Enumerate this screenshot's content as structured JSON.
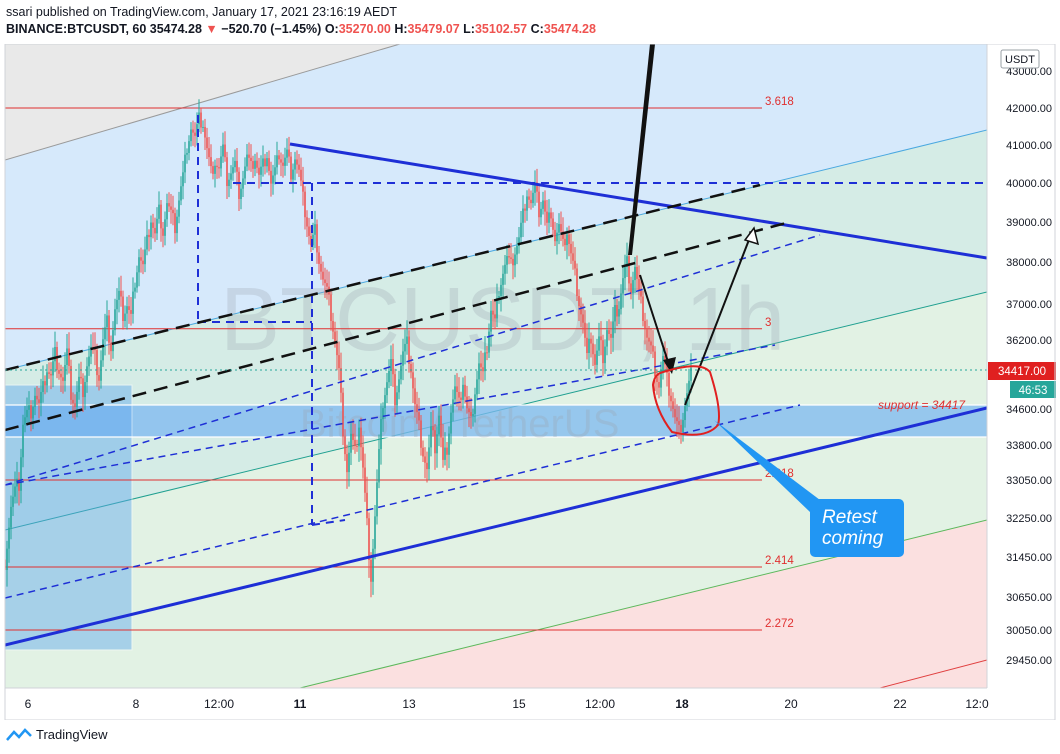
{
  "header": {
    "published": "ssari published on TradingView.com, January 17, 2021 23:16:19 AEDT",
    "symbol": "BINANCE:BTCUSDT, 60",
    "last": "35474.28",
    "change": "−520.70 (−1.45%)",
    "o_label": "O:",
    "o_value": "35270.00",
    "h_label": "H:",
    "h_value": "35479.07",
    "l_label": "L:",
    "l_value": "35102.57",
    "c_label": "C:",
    "c_value": "35474.28"
  },
  "footer": {
    "brand": "TradingView"
  },
  "colors": {
    "up": "#26a69a",
    "down": "#ef5350",
    "trend": "#1e2fd6",
    "fib": "#e03030",
    "channel_blue": "#cfe6fb",
    "channel_green": "#dff1e2",
    "channel_red": "#fbdede",
    "channel_gray": "#e6e6e6"
  },
  "chart_data": {
    "type": "candlestick",
    "price_unit": "USDT",
    "watermark_title": "BTCUSDT, 1h",
    "watermark_subtitle": "Bitcoin / TetherUS",
    "y_ticks": [
      "43000.00",
      "42000.00",
      "41000.00",
      "40000.00",
      "39000.00",
      "38000.00",
      "37000.00",
      "36200.00",
      "35450.00",
      "34600.00",
      "33800.00",
      "33050.00",
      "32250.00",
      "31450.00",
      "30650.00",
      "30050.00",
      "29450.00"
    ],
    "x_ticks": [
      {
        "label": "6",
        "bold": false
      },
      {
        "label": "8",
        "bold": false
      },
      {
        "label": "12:00",
        "bold": false
      },
      {
        "label": "11",
        "bold": true
      },
      {
        "label": "13",
        "bold": false
      },
      {
        "label": "15",
        "bold": false
      },
      {
        "label": "12:00",
        "bold": false
      },
      {
        "label": "18",
        "bold": true
      },
      {
        "label": "20",
        "bold": false
      },
      {
        "label": "22",
        "bold": false
      },
      {
        "label": "12:0",
        "bold": false
      }
    ],
    "price_label": "34417.00",
    "countdown": "46:53",
    "support_label": "support = 34417",
    "fib_levels": [
      {
        "label": "3.618",
        "price": 42000
      },
      {
        "label": "3",
        "price": 36450
      },
      {
        "label": "2.618",
        "price": 33050
      },
      {
        "label": "2.414",
        "price": 31250
      },
      {
        "label": "2.272",
        "price": 30050
      }
    ],
    "horizontal_levels": [
      40000
    ],
    "annotation": "Retest\ncoming",
    "candles_close_path": [
      [
        0,
        31400
      ],
      [
        6,
        32500
      ],
      [
        10,
        32800
      ],
      [
        14,
        33000
      ],
      [
        18,
        34300
      ],
      [
        22,
        34500
      ],
      [
        26,
        34600
      ],
      [
        30,
        35000
      ],
      [
        34,
        34700
      ],
      [
        38,
        35100
      ],
      [
        42,
        35600
      ],
      [
        46,
        35400
      ],
      [
        50,
        35900
      ],
      [
        54,
        35600
      ],
      [
        58,
        35300
      ],
      [
        62,
        35900
      ],
      [
        66,
        35000
      ],
      [
        70,
        34700
      ],
      [
        74,
        35300
      ],
      [
        78,
        35100
      ],
      [
        82,
        35700
      ],
      [
        86,
        36000
      ],
      [
        90,
        35800
      ],
      [
        94,
        35400
      ],
      [
        98,
        36200
      ],
      [
        102,
        36600
      ],
      [
        106,
        36100
      ],
      [
        110,
        36900
      ],
      [
        114,
        37200
      ],
      [
        118,
        36800
      ],
      [
        122,
        37000
      ],
      [
        126,
        36700
      ],
      [
        130,
        37600
      ],
      [
        134,
        38200
      ],
      [
        138,
        37900
      ],
      [
        142,
        38500
      ],
      [
        146,
        39100
      ],
      [
        150,
        38700
      ],
      [
        154,
        39300
      ],
      [
        158,
        38800
      ],
      [
        162,
        39500
      ],
      [
        166,
        39200
      ],
      [
        170,
        38900
      ],
      [
        174,
        39600
      ],
      [
        178,
        40200
      ],
      [
        182,
        41000
      ],
      [
        186,
        41500
      ],
      [
        190,
        41200
      ],
      [
        194,
        41700
      ],
      [
        198,
        41600
      ],
      [
        202,
        40900
      ],
      [
        206,
        40300
      ],
      [
        210,
        40600
      ],
      [
        214,
        40400
      ],
      [
        218,
        40900
      ],
      [
        222,
        40100
      ],
      [
        226,
        40300
      ],
      [
        230,
        40500
      ],
      [
        234,
        39800
      ],
      [
        238,
        40200
      ],
      [
        242,
        40700
      ],
      [
        246,
        40400
      ],
      [
        250,
        40700
      ],
      [
        254,
        40200
      ],
      [
        258,
        40500
      ],
      [
        262,
        40800
      ],
      [
        266,
        40000
      ],
      [
        270,
        40300
      ],
      [
        274,
        40800
      ],
      [
        278,
        40500
      ],
      [
        282,
        40800
      ],
      [
        286,
        40300
      ],
      [
        290,
        40700
      ],
      [
        294,
        40300
      ],
      [
        298,
        39600
      ],
      [
        302,
        39000
      ],
      [
        306,
        38400
      ],
      [
        310,
        38800
      ],
      [
        314,
        38100
      ],
      [
        318,
        37600
      ],
      [
        322,
        37300
      ],
      [
        326,
        36800
      ],
      [
        330,
        36200
      ],
      [
        334,
        35500
      ],
      [
        338,
        34200
      ],
      [
        342,
        33300
      ],
      [
        346,
        34000
      ],
      [
        350,
        33600
      ],
      [
        354,
        34300
      ],
      [
        358,
        33300
      ],
      [
        362,
        32100
      ],
      [
        366,
        31100
      ],
      [
        370,
        32300
      ],
      [
        374,
        33600
      ],
      [
        378,
        34800
      ],
      [
        382,
        35300
      ],
      [
        386,
        35700
      ],
      [
        390,
        34900
      ],
      [
        394,
        35400
      ],
      [
        398,
        35900
      ],
      [
        402,
        36100
      ],
      [
        406,
        35600
      ],
      [
        410,
        34700
      ],
      [
        414,
        34200
      ],
      [
        418,
        33700
      ],
      [
        422,
        33300
      ],
      [
        426,
        34100
      ],
      [
        430,
        33800
      ],
      [
        434,
        34500
      ],
      [
        438,
        33400
      ],
      [
        442,
        33800
      ],
      [
        446,
        34600
      ],
      [
        450,
        35100
      ],
      [
        454,
        34700
      ],
      [
        458,
        35300
      ],
      [
        462,
        34600
      ],
      [
        466,
        34300
      ],
      [
        470,
        35100
      ],
      [
        474,
        35700
      ],
      [
        478,
        35400
      ],
      [
        482,
        36100
      ],
      [
        486,
        36900
      ],
      [
        490,
        36600
      ],
      [
        494,
        37400
      ],
      [
        498,
        37800
      ],
      [
        502,
        38100
      ],
      [
        506,
        37900
      ],
      [
        510,
        38300
      ],
      [
        514,
        38600
      ],
      [
        518,
        39200
      ],
      [
        522,
        39800
      ],
      [
        526,
        39500
      ],
      [
        530,
        39900
      ],
      [
        534,
        39300
      ],
      [
        538,
        39600
      ],
      [
        542,
        38900
      ],
      [
        546,
        39300
      ],
      [
        550,
        38600
      ],
      [
        554,
        38900
      ],
      [
        558,
        38400
      ],
      [
        562,
        38800
      ],
      [
        566,
        38200
      ],
      [
        570,
        37700
      ],
      [
        574,
        37100
      ],
      [
        578,
        36600
      ],
      [
        582,
        35800
      ],
      [
        586,
        36300
      ],
      [
        590,
        35700
      ],
      [
        594,
        36200
      ],
      [
        598,
        35900
      ],
      [
        602,
        36500
      ],
      [
        606,
        36200
      ],
      [
        610,
        36800
      ],
      [
        614,
        37000
      ],
      [
        618,
        37600
      ],
      [
        622,
        38000
      ],
      [
        626,
        37400
      ],
      [
        630,
        37900
      ],
      [
        634,
        37200
      ],
      [
        638,
        36800
      ],
      [
        642,
        36300
      ],
      [
        646,
        36000
      ],
      [
        650,
        35600
      ],
      [
        654,
        35200
      ],
      [
        658,
        35800
      ],
      [
        662,
        35300
      ],
      [
        666,
        34900
      ],
      [
        670,
        34400
      ],
      [
        674,
        34100
      ],
      [
        678,
        34500
      ],
      [
        682,
        35000
      ],
      [
        686,
        35474
      ]
    ]
  }
}
